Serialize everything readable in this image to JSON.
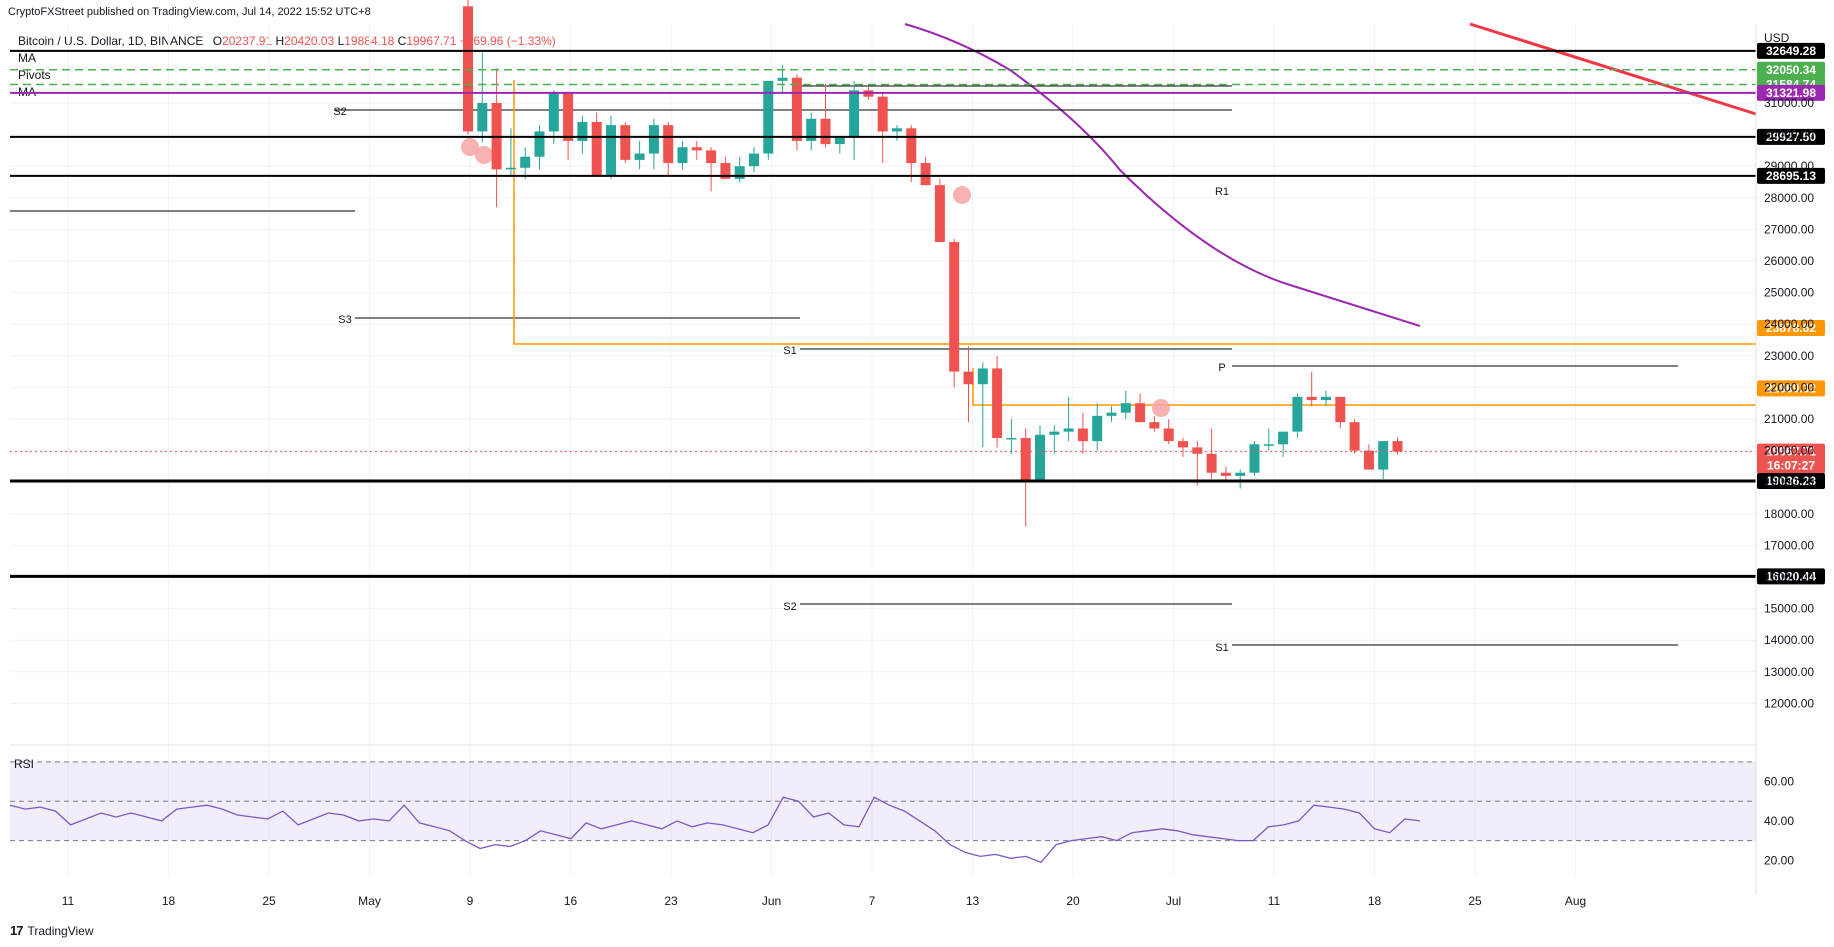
{
  "caption": "CryptoFXStreet published on TradingView.com, Jul 14, 2022 15:52 UTC+8",
  "legend": {
    "symbol": "Bitcoin / U.S. Dollar, 1D, BINANCE",
    "o_key": "O",
    "o": "20237.91",
    "h_key": "H",
    "h": "20420.03",
    "l_key": "L",
    "l": "19884.18",
    "c_key": "C",
    "c": "19967.71",
    "change": "−269.96 (−1.33%)"
  },
  "indicators": [
    "MA",
    "Pivots",
    "MA"
  ],
  "rsi_label": "RSI",
  "footer": "TradingView",
  "footer_mark": "17",
  "colors": {
    "up": "#26a69a",
    "down": "#ef5350",
    "ma50": "#9c27b0",
    "ma200": "#f23645",
    "orange": "#ff9800",
    "pivot_green": "#4caf50",
    "rsi": "#7e57c2"
  },
  "chart_data": {
    "type": "candlestick",
    "symbol": "Bitcoin / U.S. Dollar",
    "interval": "1D",
    "exchange": "BINANCE",
    "currency": "USD",
    "ylim": [
      11000,
      33500
    ],
    "x_ticks": [
      "11",
      "18",
      "25",
      "May",
      "9",
      "16",
      "23",
      "Jun",
      "7",
      "13",
      "20",
      "Jul",
      "11",
      "18",
      "25",
      "Aug"
    ],
    "y_ticks": [
      12000,
      13000,
      14000,
      15000,
      16000,
      17000,
      18000,
      19000,
      20000,
      21000,
      22000,
      23000,
      24000,
      25000,
      26000,
      27000,
      28000,
      29000,
      30000,
      31000
    ],
    "first_candle_date": "2022-05-09",
    "candles": [
      [
        34060,
        35500,
        30000,
        30100
      ],
      [
        30100,
        32600,
        29750,
        31000
      ],
      [
        31000,
        32100,
        27700,
        28900
      ],
      [
        28900,
        30200,
        28700,
        28950
      ],
      [
        28950,
        29600,
        28600,
        29300
      ],
      [
        29300,
        30300,
        28900,
        30100
      ],
      [
        30100,
        31400,
        29700,
        31300
      ],
      [
        31300,
        31300,
        29200,
        29800
      ],
      [
        29800,
        30600,
        29400,
        30400
      ],
      [
        30400,
        30700,
        28700,
        28700
      ],
      [
        28700,
        30600,
        28600,
        30300
      ],
      [
        30300,
        30400,
        29100,
        29200
      ],
      [
        29200,
        29800,
        28900,
        29400
      ],
      [
        29400,
        30500,
        28900,
        30300
      ],
      [
        30300,
        30400,
        28700,
        29100
      ],
      [
        29100,
        29800,
        28900,
        29600
      ],
      [
        29600,
        29800,
        29200,
        29500
      ],
      [
        29500,
        29600,
        28200,
        29100
      ],
      [
        29100,
        29300,
        28600,
        28600
      ],
      [
        28600,
        29300,
        28500,
        29000
      ],
      [
        29000,
        29600,
        28800,
        29400
      ],
      [
        29400,
        31700,
        29200,
        31700
      ],
      [
        31700,
        32200,
        31300,
        31800
      ],
      [
        31800,
        31900,
        29500,
        29800
      ],
      [
        29800,
        30700,
        29500,
        30500
      ],
      [
        30500,
        31600,
        29600,
        29700
      ],
      [
        29700,
        29900,
        29400,
        29900
      ],
      [
        29900,
        31700,
        29200,
        31400
      ],
      [
        31400,
        31500,
        31100,
        31200
      ],
      [
        31200,
        31300,
        29100,
        30100
      ],
      [
        30100,
        30300,
        29800,
        30200
      ],
      [
        30200,
        30300,
        28500,
        29100
      ],
      [
        29100,
        29300,
        28500,
        28400
      ],
      [
        28400,
        28600,
        26600,
        26600
      ],
      [
        26600,
        26700,
        22000,
        22500
      ],
      [
        22500,
        23300,
        20900,
        22100
      ],
      [
        22100,
        22800,
        20100,
        22600
      ],
      [
        22600,
        23000,
        20100,
        20400
      ],
      [
        20400,
        21000,
        19900,
        20400
      ],
      [
        20400,
        20700,
        17600,
        19000
      ],
      [
        19000,
        20800,
        19000,
        20500
      ],
      [
        20500,
        20800,
        19900,
        20600
      ],
      [
        20600,
        21700,
        20300,
        20700
      ],
      [
        20700,
        21200,
        19900,
        20300
      ],
      [
        20300,
        21500,
        20000,
        21100
      ],
      [
        21100,
        21400,
        20900,
        21200
      ],
      [
        21200,
        21900,
        21000,
        21500
      ],
      [
        21500,
        21800,
        20900,
        20900
      ],
      [
        20900,
        21100,
        20600,
        20700
      ],
      [
        20700,
        21000,
        20200,
        20300
      ],
      [
        20300,
        20400,
        19800,
        20100
      ],
      [
        20100,
        20300,
        18900,
        19900
      ],
      [
        19900,
        20700,
        19100,
        19300
      ],
      [
        19300,
        19500,
        19000,
        19200
      ],
      [
        19200,
        19400,
        18800,
        19300
      ],
      [
        19300,
        20300,
        19200,
        20200
      ],
      [
        20200,
        20700,
        20000,
        20200
      ],
      [
        20200,
        20600,
        19800,
        20600
      ],
      [
        20600,
        21800,
        20400,
        21700
      ],
      [
        21700,
        22500,
        21400,
        21600
      ],
      [
        21600,
        21900,
        21400,
        21700
      ],
      [
        21700,
        21700,
        20700,
        20900
      ],
      [
        20900,
        21000,
        19900,
        20000
      ],
      [
        20000,
        20200,
        19600,
        19400
      ],
      [
        19400,
        20300,
        19100,
        20300
      ],
      [
        20300,
        20420,
        19880,
        19968
      ]
    ],
    "levels": [
      {
        "price": 32649.28,
        "label": "32649.28",
        "color": "#000000"
      },
      {
        "price": 32050.34,
        "label": "32050.34",
        "color": "#4caf50"
      },
      {
        "price": 31584.74,
        "label": "31584.74",
        "color": "#4caf50"
      },
      {
        "price": 31321.98,
        "label": "31321.98",
        "color": "#9c27b0"
      },
      {
        "price": 29927.5,
        "label": "29927.50",
        "color": "#000000"
      },
      {
        "price": 28695.13,
        "label": "28695.13",
        "color": "#000000"
      },
      {
        "price": 23878.62,
        "label": "23878.62",
        "color": "#ff9800"
      },
      {
        "price": 21969.32,
        "label": "21969.32",
        "color": "#ff9800"
      },
      {
        "price": 19967.71,
        "label": "19967.71",
        "color": "#ef5350",
        "sub": "16:07:27"
      },
      {
        "price": 19036.23,
        "label": "19036.23",
        "color": "#000000"
      },
      {
        "price": 16020.44,
        "label": "16020.44",
        "color": "#000000"
      }
    ],
    "pivot_labels": [
      "S2",
      "S3",
      "S1",
      "R1",
      "P",
      "S2",
      "S1"
    ],
    "rsi": {
      "yticks": [
        20,
        40,
        60
      ],
      "upper": 70,
      "lower": 30,
      "values": [
        48,
        46,
        47,
        45,
        38,
        41,
        44,
        42,
        44,
        42,
        40,
        46,
        47,
        48,
        46,
        43,
        42,
        41,
        45,
        38,
        41,
        44,
        43,
        40,
        41,
        40,
        48,
        39,
        37,
        35,
        30,
        26,
        28,
        27,
        30,
        35,
        33,
        31,
        39,
        36,
        38,
        40,
        38,
        36,
        40,
        37,
        39,
        38,
        36,
        34,
        38,
        52,
        50,
        42,
        44,
        38,
        37,
        52,
        48,
        45,
        40,
        35,
        28,
        24,
        22,
        23,
        21,
        22,
        19,
        28,
        30,
        31,
        32,
        30,
        34,
        35,
        36,
        35,
        33,
        32,
        31,
        30,
        30,
        37,
        38,
        40,
        48,
        47,
        46,
        44,
        36,
        34,
        41,
        40
      ]
    }
  }
}
